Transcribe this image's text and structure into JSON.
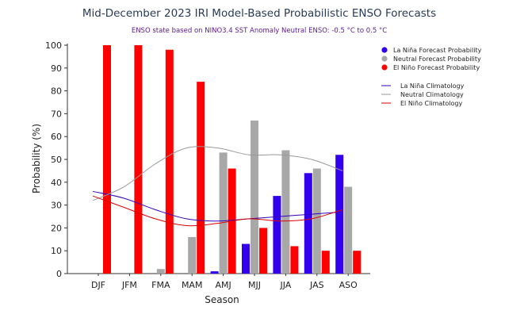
{
  "chart_data": {
    "type": "bar",
    "title": "Mid-December 2023 IRI Model-Based Probabilistic ENSO Forecasts",
    "subtitle": "ENSO state based on NINO3.4 SST Anomaly Neutral ENSO: -0.5 °C to 0.5 °C",
    "xlabel": "Season",
    "ylabel": "Probability (%)",
    "ylim": [
      0,
      100
    ],
    "yticks": [
      0,
      10,
      20,
      30,
      40,
      50,
      60,
      70,
      80,
      90,
      100
    ],
    "categories": [
      "DJF",
      "JFM",
      "FMA",
      "MAM",
      "AMJ",
      "MJJ",
      "JJA",
      "JAS",
      "ASO"
    ],
    "grid": false,
    "legend_position": "right",
    "series": [
      {
        "name": "La Niña Forecast Probability",
        "kind": "bar",
        "color": "#3300ee",
        "values": [
          0,
          0,
          0,
          0,
          1,
          13,
          34,
          44,
          52
        ]
      },
      {
        "name": "Neutral Forecast Probability",
        "kind": "bar",
        "color": "#a8a8a8",
        "values": [
          0,
          0,
          2,
          16,
          53,
          67,
          54,
          46,
          38
        ]
      },
      {
        "name": "El Niño Forecast Probability",
        "kind": "bar",
        "color": "#ff0000",
        "values": [
          100,
          100,
          98,
          84,
          46,
          20,
          12,
          10,
          10
        ]
      },
      {
        "name": "La Niña Climatology",
        "kind": "line",
        "color": "#3300bb",
        "values": [
          36,
          33,
          28,
          24,
          23,
          24,
          25,
          26,
          27
        ]
      },
      {
        "name": "Neutral Climatology",
        "kind": "line",
        "color": "#999999",
        "values": [
          32,
          38,
          48,
          55,
          55,
          52,
          52,
          50,
          45
        ]
      },
      {
        "name": "El Niño Climatology",
        "kind": "line",
        "color": "#dd0000",
        "values": [
          34,
          29,
          24,
          21,
          22,
          24,
          23,
          24,
          28
        ]
      }
    ]
  }
}
